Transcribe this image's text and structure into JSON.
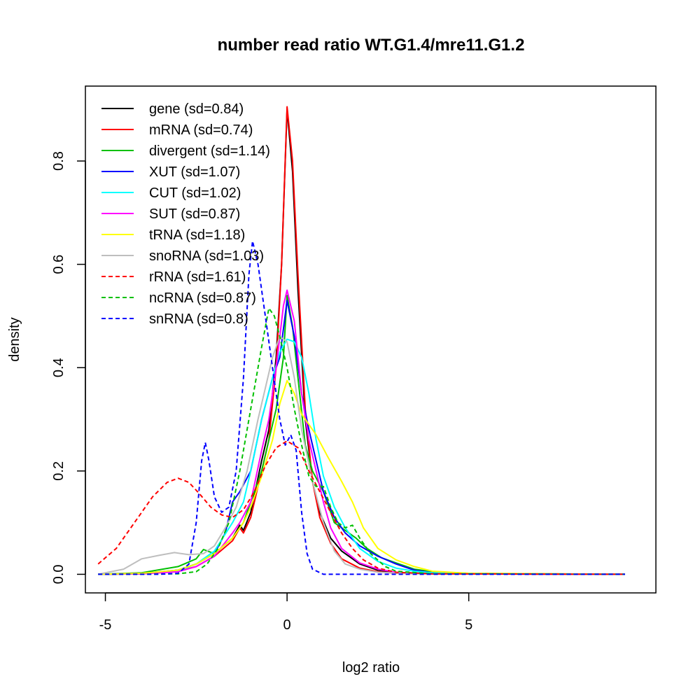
{
  "chart_data": {
    "type": "line",
    "title": "number read ratio WT.G1.4/mre11.G1.2",
    "xlabel": "log2 ratio",
    "ylabel": "density",
    "xlim": [
      -5.55,
      10.15
    ],
    "ylim": [
      -0.036,
      0.945
    ],
    "xticks": [
      -5,
      0,
      5
    ],
    "xtick_labels": [
      "-5",
      "0",
      "5"
    ],
    "yticks": [
      0.0,
      0.2,
      0.4,
      0.6,
      0.8
    ],
    "ytick_labels": [
      "0.0",
      "0.2",
      "0.4",
      "0.6",
      "0.8"
    ],
    "legend_position": "top-left",
    "series": [
      {
        "name": "gene (sd=0.84)",
        "color": "#000000",
        "dash": false,
        "points": [
          [
            -5.2,
            0
          ],
          [
            -4,
            0.001
          ],
          [
            -3,
            0.008
          ],
          [
            -2.5,
            0.02
          ],
          [
            -2,
            0.04
          ],
          [
            -1.5,
            0.07
          ],
          [
            -1.3,
            0.095
          ],
          [
            -1.2,
            0.085
          ],
          [
            -1,
            0.12
          ],
          [
            -0.7,
            0.22
          ],
          [
            -0.5,
            0.28
          ],
          [
            -0.3,
            0.42
          ],
          [
            -0.15,
            0.6
          ],
          [
            0,
            0.9
          ],
          [
            0.15,
            0.78
          ],
          [
            0.3,
            0.55
          ],
          [
            0.5,
            0.3
          ],
          [
            0.7,
            0.18
          ],
          [
            0.9,
            0.12
          ],
          [
            1.2,
            0.07
          ],
          [
            1.5,
            0.045
          ],
          [
            2,
            0.02
          ],
          [
            2.5,
            0.008
          ],
          [
            3,
            0.003
          ],
          [
            4,
            0.001
          ],
          [
            9.3,
            0
          ]
        ]
      },
      {
        "name": "mRNA (sd=0.74)",
        "color": "#ff0000",
        "dash": false,
        "points": [
          [
            -5.2,
            0
          ],
          [
            -4,
            0.001
          ],
          [
            -3,
            0.006
          ],
          [
            -2.5,
            0.015
          ],
          [
            -2,
            0.035
          ],
          [
            -1.5,
            0.065
          ],
          [
            -1.3,
            0.09
          ],
          [
            -1.2,
            0.08
          ],
          [
            -1,
            0.11
          ],
          [
            -0.7,
            0.2
          ],
          [
            -0.5,
            0.26
          ],
          [
            -0.3,
            0.4
          ],
          [
            -0.15,
            0.6
          ],
          [
            0,
            0.905
          ],
          [
            0.15,
            0.8
          ],
          [
            0.3,
            0.58
          ],
          [
            0.5,
            0.32
          ],
          [
            0.7,
            0.18
          ],
          [
            0.9,
            0.11
          ],
          [
            1.2,
            0.06
          ],
          [
            1.5,
            0.03
          ],
          [
            2,
            0.012
          ],
          [
            2.5,
            0.005
          ],
          [
            3,
            0.002
          ],
          [
            4,
            0.001
          ],
          [
            9.3,
            0
          ]
        ]
      },
      {
        "name": "divergent (sd=1.14)",
        "color": "#00c000",
        "dash": false,
        "points": [
          [
            -5.2,
            0
          ],
          [
            -4,
            0.003
          ],
          [
            -3,
            0.015
          ],
          [
            -2.5,
            0.03
          ],
          [
            -2.3,
            0.048
          ],
          [
            -2,
            0.04
          ],
          [
            -1.5,
            0.07
          ],
          [
            -1.2,
            0.1
          ],
          [
            -1,
            0.14
          ],
          [
            -0.7,
            0.2
          ],
          [
            -0.5,
            0.26
          ],
          [
            -0.3,
            0.32
          ],
          [
            -0.1,
            0.42
          ],
          [
            0,
            0.54
          ],
          [
            0.15,
            0.48
          ],
          [
            0.3,
            0.38
          ],
          [
            0.5,
            0.25
          ],
          [
            0.7,
            0.2
          ],
          [
            1,
            0.16
          ],
          [
            1.3,
            0.1
          ],
          [
            1.6,
            0.085
          ],
          [
            1.9,
            0.07
          ],
          [
            2.2,
            0.05
          ],
          [
            2.6,
            0.032
          ],
          [
            3,
            0.022
          ],
          [
            3.5,
            0.01
          ],
          [
            4,
            0.005
          ],
          [
            5,
            0.002
          ],
          [
            9.3,
            0
          ]
        ]
      },
      {
        "name": "XUT (sd=1.07)",
        "color": "#0000ff",
        "dash": false,
        "points": [
          [
            -5.2,
            0
          ],
          [
            -4,
            0.002
          ],
          [
            -3,
            0.008
          ],
          [
            -2.5,
            0.02
          ],
          [
            -2,
            0.04
          ],
          [
            -1.7,
            0.08
          ],
          [
            -1.5,
            0.14
          ],
          [
            -1.3,
            0.16
          ],
          [
            -1,
            0.2
          ],
          [
            -0.7,
            0.3
          ],
          [
            -0.4,
            0.38
          ],
          [
            -0.2,
            0.42
          ],
          [
            0,
            0.53
          ],
          [
            0.2,
            0.46
          ],
          [
            0.4,
            0.35
          ],
          [
            0.6,
            0.28
          ],
          [
            0.8,
            0.22
          ],
          [
            1,
            0.16
          ],
          [
            1.3,
            0.11
          ],
          [
            1.6,
            0.08
          ],
          [
            2,
            0.055
          ],
          [
            2.5,
            0.035
          ],
          [
            3,
            0.02
          ],
          [
            3.5,
            0.008
          ],
          [
            4,
            0.003
          ],
          [
            5,
            0.001
          ],
          [
            9.3,
            0
          ]
        ]
      },
      {
        "name": "CUT (sd=1.02)",
        "color": "#00ffff",
        "dash": false,
        "points": [
          [
            -5.2,
            0
          ],
          [
            -4,
            0.001
          ],
          [
            -3,
            0.006
          ],
          [
            -2.5,
            0.02
          ],
          [
            -2,
            0.045
          ],
          [
            -1.5,
            0.1
          ],
          [
            -1.2,
            0.14
          ],
          [
            -1,
            0.2
          ],
          [
            -0.7,
            0.3
          ],
          [
            -0.4,
            0.38
          ],
          [
            -0.2,
            0.43
          ],
          [
            0,
            0.455
          ],
          [
            0.2,
            0.45
          ],
          [
            0.4,
            0.42
          ],
          [
            0.6,
            0.35
          ],
          [
            0.8,
            0.26
          ],
          [
            1,
            0.19
          ],
          [
            1.3,
            0.13
          ],
          [
            1.6,
            0.09
          ],
          [
            2,
            0.05
          ],
          [
            2.5,
            0.025
          ],
          [
            3,
            0.012
          ],
          [
            3.5,
            0.006
          ],
          [
            4,
            0.003
          ],
          [
            5,
            0.001
          ],
          [
            9.3,
            0
          ]
        ]
      },
      {
        "name": "SUT (sd=0.87)",
        "color": "#ff00ff",
        "dash": false,
        "points": [
          [
            -5.2,
            0
          ],
          [
            -4,
            0.001
          ],
          [
            -3,
            0.005
          ],
          [
            -2.5,
            0.015
          ],
          [
            -2,
            0.035
          ],
          [
            -1.5,
            0.08
          ],
          [
            -1.3,
            0.1
          ],
          [
            -1,
            0.14
          ],
          [
            -0.7,
            0.24
          ],
          [
            -0.5,
            0.3
          ],
          [
            -0.3,
            0.4
          ],
          [
            -0.1,
            0.52
          ],
          [
            0,
            0.55
          ],
          [
            0.2,
            0.49
          ],
          [
            0.4,
            0.35
          ],
          [
            0.6,
            0.26
          ],
          [
            0.8,
            0.2
          ],
          [
            1,
            0.14
          ],
          [
            1.2,
            0.09
          ],
          [
            1.5,
            0.05
          ],
          [
            2,
            0.022
          ],
          [
            2.5,
            0.01
          ],
          [
            3,
            0.004
          ],
          [
            4,
            0.001
          ],
          [
            9.3,
            0
          ]
        ]
      },
      {
        "name": "tRNA (sd=1.18)",
        "color": "#ffff00",
        "dash": false,
        "points": [
          [
            -5.2,
            0
          ],
          [
            -4,
            0.002
          ],
          [
            -3,
            0.008
          ],
          [
            -2.5,
            0.02
          ],
          [
            -2,
            0.04
          ],
          [
            -1.5,
            0.07
          ],
          [
            -1.2,
            0.1
          ],
          [
            -1,
            0.13
          ],
          [
            -0.7,
            0.19
          ],
          [
            -0.4,
            0.26
          ],
          [
            -0.2,
            0.33
          ],
          [
            0,
            0.375
          ],
          [
            0.2,
            0.35
          ],
          [
            0.4,
            0.31
          ],
          [
            0.6,
            0.29
          ],
          [
            0.8,
            0.27
          ],
          [
            1.1,
            0.23
          ],
          [
            1.5,
            0.18
          ],
          [
            1.8,
            0.14
          ],
          [
            2.1,
            0.09
          ],
          [
            2.5,
            0.05
          ],
          [
            3,
            0.028
          ],
          [
            3.5,
            0.015
          ],
          [
            4,
            0.006
          ],
          [
            5,
            0.002
          ],
          [
            9.3,
            0
          ]
        ]
      },
      {
        "name": "snoRNA (sd=1.03)",
        "color": "#bebebe",
        "dash": false,
        "points": [
          [
            -5.2,
            0
          ],
          [
            -4.5,
            0.01
          ],
          [
            -4,
            0.03
          ],
          [
            -3.5,
            0.037
          ],
          [
            -3.1,
            0.042
          ],
          [
            -2.7,
            0.038
          ],
          [
            -2.3,
            0.04
          ],
          [
            -2,
            0.055
          ],
          [
            -1.7,
            0.09
          ],
          [
            -1.4,
            0.13
          ],
          [
            -1.1,
            0.2
          ],
          [
            -0.8,
            0.3
          ],
          [
            -0.6,
            0.36
          ],
          [
            -0.4,
            0.42
          ],
          [
            -0.2,
            0.46
          ],
          [
            0,
            0.45
          ],
          [
            0.2,
            0.38
          ],
          [
            0.4,
            0.28
          ],
          [
            0.7,
            0.18
          ],
          [
            1,
            0.1
          ],
          [
            1.3,
            0.045
          ],
          [
            1.6,
            0.02
          ],
          [
            2,
            0.01
          ],
          [
            2.5,
            0.004
          ],
          [
            3.5,
            0.001
          ],
          [
            9.3,
            0
          ]
        ]
      },
      {
        "name": "rRNA (sd=1.61)",
        "color": "#ff0000",
        "dash": true,
        "points": [
          [
            -5.2,
            0.02
          ],
          [
            -4.7,
            0.05
          ],
          [
            -4.2,
            0.1
          ],
          [
            -3.7,
            0.15
          ],
          [
            -3.3,
            0.178
          ],
          [
            -3,
            0.186
          ],
          [
            -2.7,
            0.178
          ],
          [
            -2.4,
            0.155
          ],
          [
            -2.1,
            0.13
          ],
          [
            -1.8,
            0.115
          ],
          [
            -1.5,
            0.11
          ],
          [
            -1.2,
            0.125
          ],
          [
            -0.9,
            0.16
          ],
          [
            -0.6,
            0.21
          ],
          [
            -0.3,
            0.245
          ],
          [
            0,
            0.258
          ],
          [
            0.3,
            0.245
          ],
          [
            0.6,
            0.2
          ],
          [
            0.9,
            0.16
          ],
          [
            1.2,
            0.12
          ],
          [
            1.5,
            0.08
          ],
          [
            1.8,
            0.05
          ],
          [
            2.1,
            0.028
          ],
          [
            2.5,
            0.012
          ],
          [
            3,
            0.004
          ],
          [
            4,
            0.001
          ],
          [
            9.3,
            0
          ]
        ]
      },
      {
        "name": "ncRNA (sd=0.87)",
        "color": "#00c000",
        "dash": true,
        "points": [
          [
            -5.2,
            0
          ],
          [
            -4,
            0
          ],
          [
            -3,
            0.001
          ],
          [
            -2.5,
            0.005
          ],
          [
            -2.2,
            0.02
          ],
          [
            -1.9,
            0.05
          ],
          [
            -1.6,
            0.1
          ],
          [
            -1.3,
            0.2
          ],
          [
            -1,
            0.32
          ],
          [
            -0.7,
            0.44
          ],
          [
            -0.5,
            0.515
          ],
          [
            -0.35,
            0.5
          ],
          [
            -0.2,
            0.46
          ],
          [
            0,
            0.4
          ],
          [
            0.2,
            0.32
          ],
          [
            0.4,
            0.25
          ],
          [
            0.6,
            0.19
          ],
          [
            0.8,
            0.17
          ],
          [
            1,
            0.17
          ],
          [
            1.2,
            0.13
          ],
          [
            1.4,
            0.1
          ],
          [
            1.6,
            0.09
          ],
          [
            1.8,
            0.095
          ],
          [
            2,
            0.07
          ],
          [
            2.3,
            0.04
          ],
          [
            2.7,
            0.015
          ],
          [
            3,
            0.006
          ],
          [
            4,
            0.001
          ],
          [
            9.3,
            0
          ]
        ]
      },
      {
        "name": "snRNA (sd=0.8)",
        "color": "#0000ff",
        "dash": true,
        "points": [
          [
            -5.2,
            0
          ],
          [
            -3.5,
            0
          ],
          [
            -3,
            0.002
          ],
          [
            -2.7,
            0.02
          ],
          [
            -2.5,
            0.1
          ],
          [
            -2.35,
            0.22
          ],
          [
            -2.25,
            0.255
          ],
          [
            -2.15,
            0.22
          ],
          [
            -2,
            0.15
          ],
          [
            -1.8,
            0.12
          ],
          [
            -1.6,
            0.13
          ],
          [
            -1.4,
            0.2
          ],
          [
            -1.2,
            0.38
          ],
          [
            -1.05,
            0.58
          ],
          [
            -0.95,
            0.645
          ],
          [
            -0.8,
            0.6
          ],
          [
            -0.6,
            0.5
          ],
          [
            -0.4,
            0.4
          ],
          [
            -0.2,
            0.3
          ],
          [
            -0.05,
            0.25
          ],
          [
            0.1,
            0.27
          ],
          [
            0.25,
            0.24
          ],
          [
            0.4,
            0.12
          ],
          [
            0.55,
            0.04
          ],
          [
            0.7,
            0.01
          ],
          [
            1,
            0
          ],
          [
            9.3,
            0
          ]
        ]
      }
    ]
  }
}
